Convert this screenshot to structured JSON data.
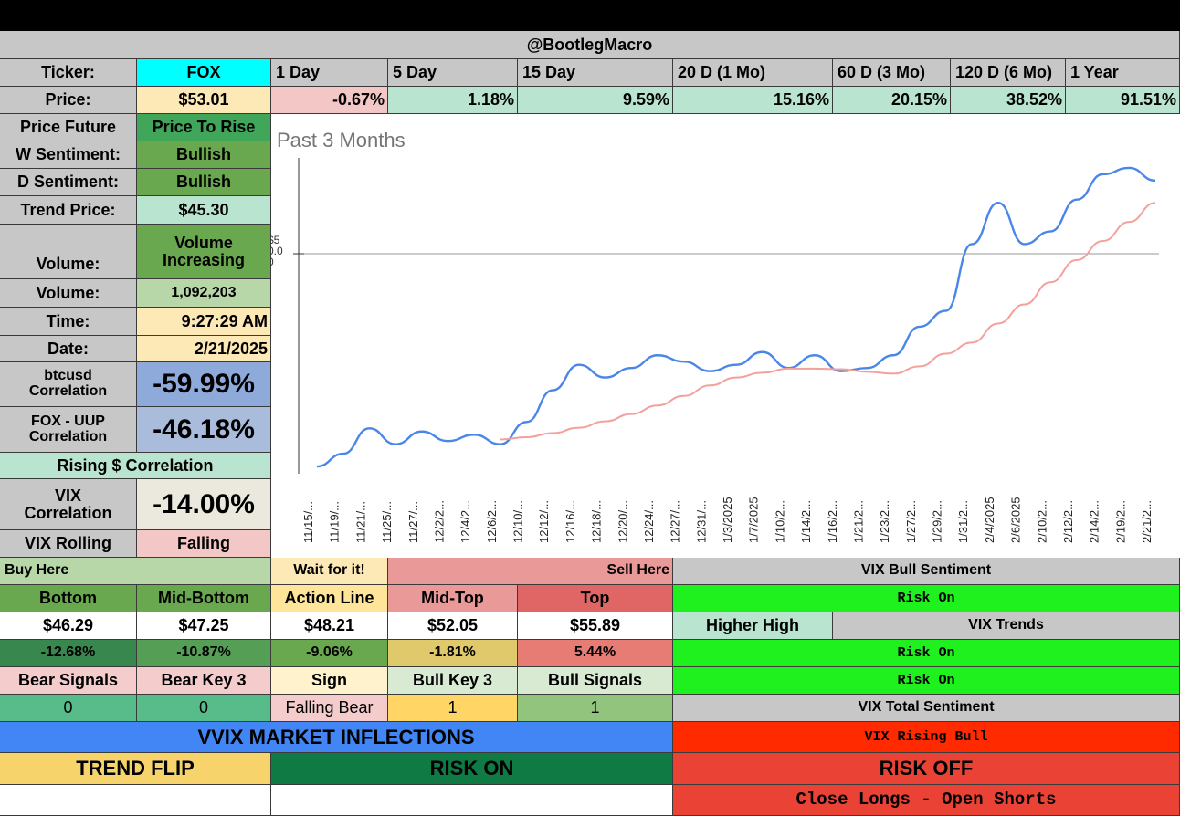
{
  "header": {
    "handle": "@BootlegMacro"
  },
  "ticker": {
    "label": "Ticker:",
    "value": "FOX"
  },
  "price": {
    "label": "Price:",
    "value": "$53.01"
  },
  "periods": [
    {
      "label": "1 Day",
      "change": "-0.67%"
    },
    {
      "label": "5 Day",
      "change": "1.18%"
    },
    {
      "label": "15 Day",
      "change": "9.59%"
    },
    {
      "label": "20 D (1 Mo)",
      "change": "15.16%"
    },
    {
      "label": "60 D (3 Mo)",
      "change": "20.15%"
    },
    {
      "label": "120 D (6 Mo)",
      "change": "38.52%"
    },
    {
      "label": "1 Year",
      "change": "91.51%"
    }
  ],
  "stats": {
    "price_future": {
      "label": "Price Future",
      "value": "Price To Rise"
    },
    "w_sentiment": {
      "label": "W Sentiment:",
      "value": "Bullish"
    },
    "d_sentiment": {
      "label": "D Sentiment:",
      "value": "Bullish"
    },
    "trend_price": {
      "label": "Trend Price:",
      "value": "$45.30"
    },
    "volume_trend": {
      "label": "Volume:",
      "value": "Volume Increasing"
    },
    "volume": {
      "label": "Volume:",
      "value": "1,092,203"
    },
    "time": {
      "label": "Time:",
      "value": "9:27:29 AM"
    },
    "date": {
      "label": "Date:",
      "value": "2/21/2025"
    },
    "btc_corr": {
      "label": "btcusd Correlation",
      "value": "-59.99%"
    },
    "uup_corr": {
      "label": "FOX - UUP Correlation",
      "value": "-46.18%"
    },
    "rising_corr": {
      "label": "Rising $ Correlation"
    },
    "vix_corr": {
      "label": "VIX Correlation",
      "value": "-14.00%"
    },
    "vix_rolling": {
      "label": "VIX Rolling",
      "value": "Falling"
    }
  },
  "levels": {
    "buy_here": "Buy Here",
    "wait": "Wait for it!",
    "sell_here": "Sell Here",
    "headers": [
      "Bottom",
      "Mid-Bottom",
      "Action Line",
      "Mid-Top",
      "Top"
    ],
    "prices": [
      "$46.29",
      "$47.25",
      "$48.21",
      "$52.05",
      "$55.89"
    ],
    "pcts": [
      "-12.68%",
      "-10.87%",
      "-9.06%",
      "-1.81%",
      "5.44%"
    ]
  },
  "signals": {
    "headers": [
      "Bear Signals",
      "Bear Key 3",
      "Sign",
      "Bull Key 3",
      "Bull Signals"
    ],
    "values": [
      "0",
      "0",
      "Falling Bear",
      "1",
      "1"
    ]
  },
  "vix_panel": {
    "bull_sentiment_title": "VIX Bull Sentiment",
    "bull_sentiment_value": "Risk On",
    "higher_high": "Higher High",
    "trends_title": "VIX Trends",
    "trend_1": "Risk On",
    "trend_2": "Risk On",
    "total_title": "VIX Total Sentiment",
    "total_value": "VIX Rising Bull",
    "risk_off": "RISK OFF",
    "action": "Close Longs - Open Shorts"
  },
  "inflections": {
    "title": "VVIX MARKET INFLECTIONS",
    "trend_flip": "TREND FLIP",
    "risk_on": "RISK ON"
  },
  "colors": {
    "price_line": "#4a86e8",
    "trend_line": "#f4a09c",
    "cyan": "#00ffff",
    "bright_green": "#1ef11e",
    "blue_banner": "#4285f4",
    "red": "#ff2a00"
  },
  "chart_data": {
    "type": "line",
    "title": "Past 3 Months",
    "y_tick_label": "$5\n0.0\n0",
    "x": [
      "11/15/...",
      "11/19/...",
      "11/21/...",
      "11/25/...",
      "11/27/...",
      "12/2/2...",
      "12/4/2...",
      "12/6/2...",
      "12/10/...",
      "12/12/...",
      "12/16/...",
      "12/18/...",
      "12/20/...",
      "12/24/...",
      "12/27/...",
      "12/31/...",
      "1/3/2025",
      "1/7/2025",
      "1/10/2...",
      "1/14/2...",
      "1/16/2...",
      "1/21/2...",
      "1/23/2...",
      "1/27/2...",
      "1/29/2...",
      "1/31/2...",
      "2/4/2025",
      "2/6/2025",
      "2/10/2...",
      "2/12/2...",
      "2/14/2...",
      "2/19/2...",
      "2/21/2..."
    ],
    "series": [
      {
        "values": [
          44.2,
          44.6,
          45.4,
          44.9,
          45.3,
          45.0,
          45.2,
          44.9,
          45.6,
          46.6,
          47.4,
          47.0,
          47.3,
          47.7,
          47.5,
          47.2,
          47.4,
          47.8,
          47.3,
          47.7,
          47.2,
          47.3,
          47.7,
          48.6,
          49.1,
          51.2,
          52.5,
          51.2,
          51.6,
          52.6,
          53.4,
          53.6,
          53.2
        ]
      },
      {
        "values": [
          null,
          null,
          null,
          null,
          null,
          null,
          null,
          45.05,
          45.12,
          45.25,
          45.42,
          45.62,
          45.85,
          46.12,
          46.42,
          46.75,
          47.0,
          47.15,
          47.28,
          47.28,
          47.26,
          47.18,
          47.12,
          47.35,
          47.75,
          48.1,
          48.7,
          49.3,
          50.0,
          50.7,
          51.3,
          51.9,
          52.5
        ]
      }
    ],
    "ylim": [
      44,
      54
    ]
  }
}
